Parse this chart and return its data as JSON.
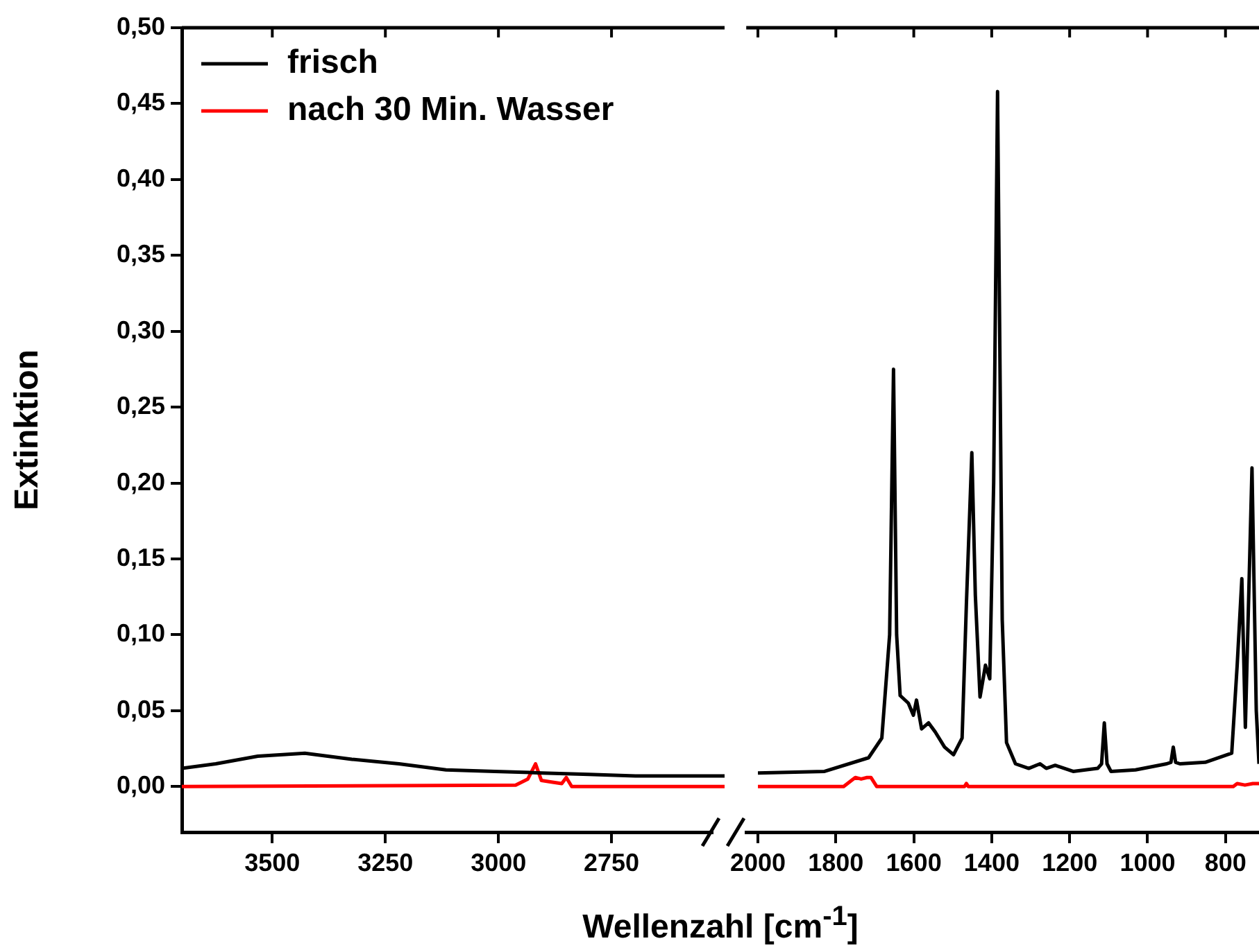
{
  "chart_data": [
    {
      "type": "line",
      "xlabel": "Wellenzahl [cm$^{-1}$]",
      "ylabel": "Extinktion",
      "legend": "top left",
      "xlim": [
        3700,
        2500
      ],
      "xticks": [
        3500,
        3250,
        3000,
        2750
      ],
      "ylim": [
        -0.03,
        0.5
      ],
      "yticks": [
        {
          "value": 0,
          "label": "0,00"
        },
        {
          "value": 0.05,
          "label": "0,05"
        },
        {
          "value": 0.1,
          "label": "0,10"
        },
        {
          "value": 0.15,
          "label": "0,15"
        },
        {
          "value": 0.2,
          "label": "0,20"
        },
        {
          "value": 0.25,
          "label": "0,25"
        },
        {
          "value": 0.3,
          "label": "0,30"
        },
        {
          "value": 0.35,
          "label": "0,35"
        },
        {
          "value": 0.4,
          "label": "0,40"
        },
        {
          "value": 0.45,
          "label": "0,45"
        },
        {
          "value": 0.5,
          "label": "0,50"
        }
      ],
      "series": [
        {
          "name": "frisch",
          "color": "#000000",
          "x": [
            3700,
            3625,
            3532,
            3428,
            3324,
            3220,
            3116,
            3008,
            2904,
            2800,
            2697,
            2500
          ],
          "values": [
            0.012,
            0.015,
            0.02,
            0.022,
            0.018,
            0.015,
            0.011,
            0.01,
            0.009,
            0.008,
            0.007,
            0.007
          ]
        },
        {
          "name": "nach 30 Min. Wasser",
          "color": "#ff0000",
          "x": [
            3700,
            2962,
            2935,
            2918,
            2905,
            2883,
            2860,
            2850,
            2838,
            2500
          ],
          "values": [
            0,
            0.001,
            0.005,
            0.015,
            0.004,
            0.003,
            0.002,
            0.006,
            0,
            0
          ]
        }
      ]
    },
    {
      "type": "line",
      "xlim": [
        2030,
        714
      ],
      "xticks": [
        2000,
        1800,
        1600,
        1400,
        1200,
        1000,
        800
      ],
      "ylim": [
        -0.03,
        0.5
      ],
      "tick_labels": "x",
      "series": [
        {
          "color": "#000000",
          "x": [
            2000,
            1829,
            1716,
            1682,
            1662,
            1652,
            1644,
            1635,
            1614,
            1601,
            1593,
            1580,
            1562,
            1545,
            1521,
            1498,
            1476,
            1465,
            1451,
            1442,
            1430,
            1416,
            1405,
            1395,
            1385,
            1373,
            1362,
            1339,
            1305,
            1276,
            1260,
            1237,
            1191,
            1128,
            1118,
            1111,
            1104,
            1094,
            1031,
            951,
            940,
            934,
            928,
            917,
            852,
            784,
            770,
            758,
            749,
            732,
            721,
            714
          ],
          "values": [
            0.009,
            0.01,
            0.019,
            0.032,
            0.1,
            0.275,
            0.1,
            0.06,
            0.055,
            0.047,
            0.057,
            0.038,
            0.042,
            0.036,
            0.026,
            0.021,
            0.032,
            0.12,
            0.22,
            0.126,
            0.059,
            0.08,
            0.071,
            0.2,
            0.458,
            0.11,
            0.029,
            0.015,
            0.012,
            0.015,
            0.012,
            0.014,
            0.01,
            0.012,
            0.015,
            0.042,
            0.015,
            0.01,
            0.011,
            0.015,
            0.016,
            0.026,
            0.016,
            0.015,
            0.016,
            0.022,
            0.08,
            0.137,
            0.039,
            0.21,
            0.05,
            0.015
          ]
        },
        {
          "color": "#ff0000",
          "x": [
            2000,
            1780,
            1760,
            1750,
            1735,
            1720,
            1710,
            1695,
            1470,
            1465,
            1460,
            780,
            770,
            750,
            730,
            714
          ],
          "values": [
            0,
            0,
            0.004,
            0.006,
            0.005,
            0.006,
            0.006,
            0,
            0,
            0.002,
            0,
            0,
            0.002,
            0.001,
            0.002,
            0.002
          ]
        }
      ]
    }
  ]
}
